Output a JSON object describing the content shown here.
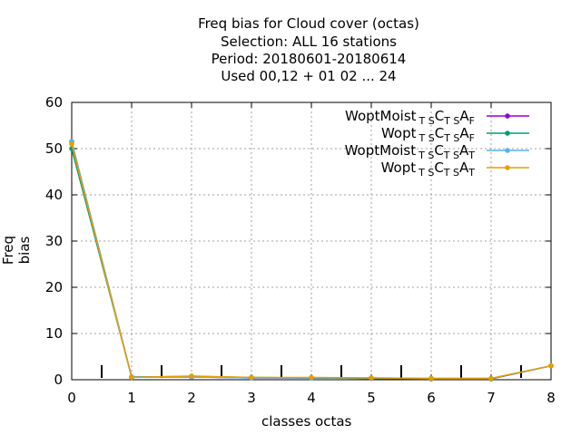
{
  "chart_data": {
    "type": "line",
    "title_lines": [
      "Freq bias  for Cloud cover (octas)",
      "Selection: ALL     16 stations",
      "Period: 20180601-20180614",
      "Used  00,12  + 01 02 ... 24"
    ],
    "xlabel": "classes octas",
    "ylabel": "Freq bias",
    "xlim": [
      0,
      8
    ],
    "ylim": [
      0,
      60
    ],
    "x_ticks": [
      0,
      1,
      2,
      3,
      4,
      5,
      6,
      7,
      8
    ],
    "y_ticks": [
      0,
      10,
      20,
      30,
      40,
      50,
      60
    ],
    "grid": true,
    "legend_position": "top-right",
    "x": [
      0,
      1,
      2,
      3,
      4,
      5,
      6,
      7,
      8
    ],
    "series": [
      {
        "name": "WoptMoist TS C TS A F",
        "legend": {
          "main": "WoptMoist",
          "parts": [
            [
              "sub",
              "T S"
            ],
            [
              "main",
              "C"
            ],
            [
              "sub",
              "T S"
            ],
            [
              "main",
              "A"
            ],
            [
              "sub",
              "F"
            ]
          ]
        },
        "color": "#9400d3",
        "values": [
          51.5,
          0.6,
          0.6,
          0.4,
          0.4,
          0.3,
          0.2,
          0.2,
          3.0
        ]
      },
      {
        "name": "Wopt TS C TS A F",
        "legend": {
          "main": "Wopt",
          "parts": [
            [
              "sub",
              "T S"
            ],
            [
              "main",
              "C"
            ],
            [
              "sub",
              "T S"
            ],
            [
              "main",
              "A"
            ],
            [
              "sub",
              "F"
            ]
          ]
        },
        "color": "#009e73",
        "values": [
          50.0,
          0.6,
          0.7,
          0.5,
          0.4,
          0.3,
          0.2,
          0.2,
          3.0
        ]
      },
      {
        "name": "WoptMoist TS C TS A T",
        "legend": {
          "main": "WoptMoist",
          "parts": [
            [
              "sub",
              "T S"
            ],
            [
              "main",
              "C"
            ],
            [
              "sub",
              "T S"
            ],
            [
              "main",
              "A"
            ],
            [
              "sub",
              "T"
            ]
          ]
        },
        "color": "#56b4e9",
        "values": [
          51.5,
          0.6,
          0.6,
          0.4,
          0.4,
          0.4,
          0.3,
          0.3,
          3.0
        ]
      },
      {
        "name": "Wopt TS C TS A T",
        "legend": {
          "main": "Wopt",
          "parts": [
            [
              "sub",
              "T S"
            ],
            [
              "main",
              "C"
            ],
            [
              "sub",
              "T S"
            ],
            [
              "main",
              "A"
            ],
            [
              "sub",
              "T"
            ]
          ]
        },
        "color": "#e69f00",
        "values": [
          51.0,
          0.5,
          0.8,
          0.5,
          0.5,
          0.4,
          0.3,
          0.3,
          3.0
        ]
      }
    ],
    "midpoint_markers": [
      0.5,
      1.5,
      2.5,
      3.5,
      4.5,
      5.5,
      6.5,
      7.5
    ]
  }
}
